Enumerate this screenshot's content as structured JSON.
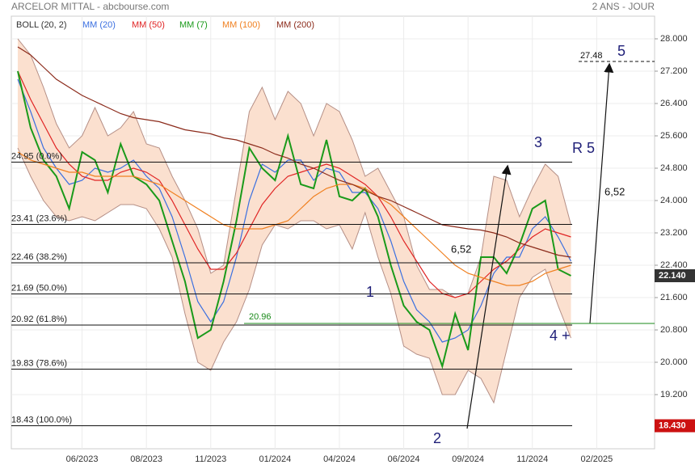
{
  "chart_data": {
    "type": "line",
    "title": "ARCELOR MITTAL - abcbourse.com",
    "subtitle": "2 ANS - JOUR",
    "categories": [
      null,
      null,
      null,
      null,
      null,
      "06/2023",
      null,
      null,
      null,
      null,
      "08/2023",
      null,
      null,
      null,
      null,
      "11/2023",
      null,
      null,
      null,
      null,
      "01/2024",
      null,
      null,
      null,
      null,
      "04/2024",
      null,
      null,
      null,
      null,
      "06/2024",
      null,
      null,
      null,
      null,
      "09/2024",
      null,
      null,
      null,
      null,
      "11/2024",
      null,
      null,
      null,
      null,
      "02/2025",
      null,
      null,
      null,
      null
    ],
    "ylim": [
      17.86,
      28.56
    ],
    "yticks": [
      {
        "value": 28.0,
        "label": "28.000"
      },
      {
        "value": 27.2,
        "label": "27.200"
      },
      {
        "value": 26.4,
        "label": "26.400"
      },
      {
        "value": 25.6,
        "label": "25.600"
      },
      {
        "value": 24.8,
        "label": "24.800"
      },
      {
        "value": 24.0,
        "label": "24.000"
      },
      {
        "value": 23.2,
        "label": "23.200"
      },
      {
        "value": 22.4,
        "label": "22.400"
      },
      {
        "value": 21.6,
        "label": "21.600"
      },
      {
        "value": 20.8,
        "label": "20.800"
      },
      {
        "value": 20.0,
        "label": "20.000"
      },
      {
        "value": 19.2,
        "label": "19.200"
      }
    ],
    "grid": true,
    "bands": [
      {
        "name": "BOLL (20, 2)",
        "color": "#fbe0cf",
        "line_color": "#b58f86",
        "upper": [
          28.0,
          27.6,
          26.8,
          25.9,
          25.3,
          25.6,
          26.3,
          25.6,
          25.8,
          26.2,
          25.4,
          25.3,
          24.6,
          24.0,
          23.3,
          22.2,
          22.4,
          24.3,
          26.2,
          26.8,
          26.0,
          26.7,
          26.4,
          25.6,
          26.4,
          26.2,
          25.5,
          24.6,
          24.8,
          24.2,
          23.6,
          22.4,
          21.8,
          21.8,
          21.6,
          21.7,
          22.6,
          24.6,
          24.5,
          23.6,
          24.3,
          24.9,
          24.6,
          23.4,
          null,
          null,
          null,
          null,
          null,
          null
        ],
        "lower": [
          25.3,
          24.6,
          24.0,
          23.6,
          23.5,
          23.6,
          23.5,
          23.7,
          23.9,
          23.9,
          23.8,
          23.3,
          22.6,
          21.2,
          20.0,
          19.8,
          20.5,
          21.0,
          21.8,
          22.9,
          23.4,
          23.3,
          23.5,
          23.5,
          23.3,
          23.4,
          22.8,
          23.7,
          22.6,
          21.7,
          20.4,
          20.2,
          20.1,
          19.2,
          19.2,
          19.8,
          19.6,
          19.0,
          20.3,
          21.6,
          22.1,
          22.3,
          21.4,
          20.6,
          null,
          null,
          null,
          null,
          null,
          null
        ]
      }
    ],
    "series": [
      {
        "name": "MM (20)",
        "color": "#3a6fe0",
        "values": [
          27.0,
          26.2,
          25.3,
          24.8,
          24.4,
          24.5,
          24.8,
          24.7,
          24.8,
          25.0,
          24.6,
          24.3,
          23.6,
          22.6,
          21.5,
          21.0,
          21.5,
          22.6,
          24.0,
          24.9,
          24.7,
          25.0,
          25.0,
          24.5,
          24.8,
          24.7,
          24.2,
          24.2,
          23.8,
          23.0,
          22.0,
          21.3,
          21.0,
          20.5,
          20.6,
          20.8,
          21.4,
          22.2,
          22.6,
          22.6,
          23.3,
          23.6,
          23.1,
          22.5,
          null,
          null,
          null,
          null,
          null,
          null
        ]
      },
      {
        "name": "MM (50)",
        "color": "#e02424",
        "values": [
          27.2,
          26.5,
          25.9,
          25.3,
          24.9,
          24.6,
          24.5,
          24.5,
          24.7,
          24.8,
          24.7,
          24.5,
          24.0,
          23.4,
          22.8,
          22.3,
          22.3,
          22.7,
          23.3,
          23.9,
          24.3,
          24.6,
          24.7,
          24.8,
          24.9,
          24.8,
          24.6,
          24.4,
          24.1,
          23.6,
          23.0,
          22.5,
          22.0,
          21.7,
          21.6,
          21.7,
          22.0,
          22.3,
          22.5,
          22.8,
          23.1,
          23.3,
          23.2,
          23.1,
          null,
          null,
          null,
          null,
          null,
          null
        ]
      },
      {
        "name": "MM (7)",
        "color": "#1a9a1a",
        "values": [
          27.2,
          25.8,
          25.0,
          24.6,
          23.8,
          25.2,
          25.0,
          24.2,
          25.4,
          24.6,
          24.4,
          24.0,
          23.0,
          22.0,
          20.6,
          20.8,
          22.0,
          23.5,
          25.3,
          24.8,
          24.5,
          25.6,
          24.4,
          24.3,
          25.5,
          24.1,
          24.0,
          24.3,
          23.6,
          22.4,
          21.4,
          21.0,
          20.8,
          19.9,
          21.2,
          20.3,
          22.6,
          22.6,
          22.2,
          22.9,
          23.8,
          24.0,
          22.3,
          22.14,
          null,
          null,
          null,
          null,
          null,
          null
        ]
      },
      {
        "name": "MM (100)",
        "color": "#f08020",
        "values": [
          25.2,
          25.0,
          24.9,
          24.8,
          24.7,
          24.7,
          24.6,
          24.6,
          24.6,
          24.6,
          24.5,
          24.4,
          24.2,
          24.0,
          23.8,
          23.6,
          23.4,
          23.3,
          23.3,
          23.3,
          23.4,
          23.5,
          23.8,
          24.1,
          24.3,
          24.4,
          24.4,
          24.3,
          24.1,
          23.9,
          23.6,
          23.3,
          23.0,
          22.7,
          22.4,
          22.2,
          22.1,
          22.0,
          21.9,
          21.9,
          22.0,
          22.2,
          22.3,
          22.4,
          null,
          null,
          null,
          null,
          null,
          null
        ]
      },
      {
        "name": "MM (200)",
        "color": "#8b2a1a",
        "values": [
          27.8,
          27.6,
          27.3,
          27.0,
          26.8,
          26.6,
          26.45,
          26.3,
          26.15,
          26.05,
          26.0,
          25.95,
          25.85,
          25.75,
          25.7,
          25.65,
          25.55,
          25.5,
          25.4,
          25.3,
          25.15,
          25.05,
          24.9,
          24.8,
          24.65,
          24.5,
          24.4,
          24.25,
          24.1,
          24.0,
          23.85,
          23.7,
          23.55,
          23.4,
          23.35,
          23.3,
          23.27,
          23.2,
          23.1,
          22.95,
          22.85,
          22.75,
          22.65,
          22.6,
          null,
          null,
          null,
          null,
          null,
          null
        ]
      }
    ],
    "fibonacci": [
      {
        "value": 24.95,
        "label": "24.95 (0.0%)"
      },
      {
        "value": 23.41,
        "label": "23.41 (23.6%)"
      },
      {
        "value": 22.46,
        "label": "22.46 (38.2%)"
      },
      {
        "value": 21.69,
        "label": "21.69 (50.0%)"
      },
      {
        "value": 20.92,
        "label": "20.92 (61.8%)"
      },
      {
        "value": 19.83,
        "label": "19.83 (78.6%)"
      },
      {
        "value": 18.43,
        "label": "18.43 (100.0%)"
      }
    ],
    "support": {
      "value": 20.96,
      "label": "20.96",
      "color": "#1a8a1a"
    },
    "last_price": {
      "value": 22.14,
      "label": "22.140",
      "color": "#333333"
    },
    "low_price": {
      "value": 18.43,
      "label": "18.430",
      "color": "#cc1111"
    },
    "annotations": [
      "1",
      "2",
      "3",
      "4 +",
      "R 5",
      "5",
      "6,52",
      "6,52",
      "27.48"
    ]
  }
}
